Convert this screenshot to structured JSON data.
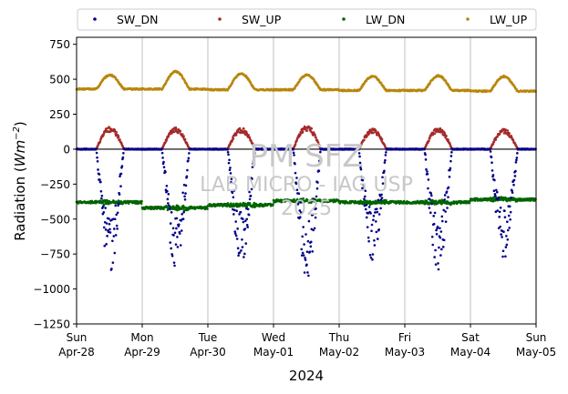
{
  "chart_data": {
    "type": "scatter",
    "ylabel_main": "Radiation (",
    "ylabel_unit": "Wm",
    "ylabel_exp": "−2",
    "ylabel_close": ")",
    "xlabel": "2024",
    "ylim": [
      -1250,
      800
    ],
    "xlim": [
      0,
      7
    ],
    "yticks": [
      -1250,
      -1000,
      -750,
      -500,
      -250,
      0,
      250,
      500,
      750
    ],
    "ytick_labels": [
      "−1250",
      "−1000",
      "−750",
      "−500",
      "−250",
      "0",
      "250",
      "500",
      "750"
    ],
    "xticks": [
      {
        "day": "Sun",
        "date": "Apr-28"
      },
      {
        "day": "Mon",
        "date": "Apr-29"
      },
      {
        "day": "Tue",
        "date": "Apr-30"
      },
      {
        "day": "Wed",
        "date": "May-01"
      },
      {
        "day": "Thu",
        "date": "May-02"
      },
      {
        "day": "Fri",
        "date": "May-03"
      },
      {
        "day": "Sat",
        "date": "May-04"
      },
      {
        "day": "Sun",
        "date": "May-05"
      }
    ],
    "grid": "vertical",
    "zero_line": true,
    "legend_position": "top, above plot",
    "series": [
      {
        "name": "SW_DN",
        "color": "#00008b"
      },
      {
        "name": "SW_UP",
        "color": "#a52a2a"
      },
      {
        "name": "LW_DN",
        "color": "#006400"
      },
      {
        "name": "LW_UP",
        "color": "#b8860b"
      }
    ],
    "daily_peaks": {
      "SW_DN_min": [
        -870,
        -840,
        -810,
        -920,
        -790,
        -860,
        -780
      ],
      "SW_UP_max": [
        155,
        150,
        145,
        165,
        140,
        150,
        140
      ],
      "LW_UP_max": [
        530,
        555,
        540,
        530,
        520,
        525,
        520
      ],
      "LW_UP_night": [
        430,
        430,
        425,
        425,
        420,
        420,
        415
      ],
      "LW_DN_level": [
        -380,
        -420,
        -400,
        -370,
        -380,
        -380,
        -360
      ]
    },
    "watermark": [
      "PM SFZ",
      "LAB MICRO - IAG USP",
      "2025"
    ]
  }
}
